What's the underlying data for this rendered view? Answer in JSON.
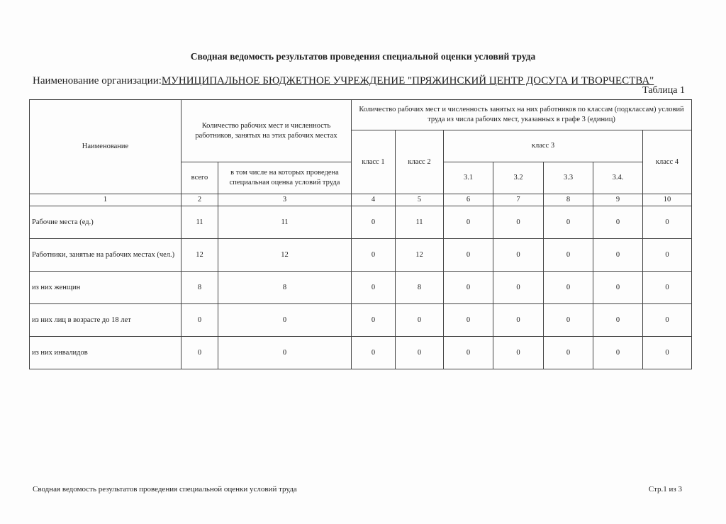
{
  "title": "Сводная ведомость результатов проведения специальной оценки условий труда",
  "organization": {
    "label": "Наименование организации:",
    "value": "МУНИЦИПАЛЬНОЕ БЮДЖЕТНОЕ УЧРЕЖДЕНИЕ \"ПРЯЖИНСКИЙ ЦЕНТР ДОСУГА И ТВОРЧЕСТВА\""
  },
  "table_label": "Таблица 1",
  "headers": {
    "name": "Наименование",
    "workplaces": "Количество рабочих мест и численность работников, занятых на этих рабочих местах",
    "total": "всего",
    "assessed": "в том числе на которых проведена специальная оценка условий труда",
    "by_class": "Количество рабочих мест и численность занятых на них работников по классам (подклассам) условий труда из числа рабочих мест, указанных в графе 3 (единиц)",
    "class1": "класс 1",
    "class2": "класс 2",
    "class3": "класс 3",
    "class4": "класс 4",
    "sub": [
      "3.1",
      "3.2",
      "3.3",
      "3.4."
    ],
    "numbers": [
      "1",
      "2",
      "3",
      "4",
      "5",
      "6",
      "7",
      "8",
      "9",
      "10"
    ]
  },
  "rows": [
    {
      "name": "Рабочие места (ед.)",
      "values": [
        "11",
        "11",
        "0",
        "11",
        "0",
        "0",
        "0",
        "0",
        "0"
      ]
    },
    {
      "name": "Работники, занятые на рабочих местах (чел.)",
      "values": [
        "12",
        "12",
        "0",
        "12",
        "0",
        "0",
        "0",
        "0",
        "0"
      ]
    },
    {
      "name": "из них женщин",
      "values": [
        "8",
        "8",
        "0",
        "8",
        "0",
        "0",
        "0",
        "0",
        "0"
      ]
    },
    {
      "name": "из них лиц в возрасте до 18 лет",
      "values": [
        "0",
        "0",
        "0",
        "0",
        "0",
        "0",
        "0",
        "0",
        "0"
      ]
    },
    {
      "name": "из них инвалидов",
      "values": [
        "0",
        "0",
        "0",
        "0",
        "0",
        "0",
        "0",
        "0",
        "0"
      ]
    }
  ],
  "footer": {
    "left": "Сводная ведомость результатов проведения специальной оценки условий труда",
    "right": "Стр.1 из 3"
  }
}
